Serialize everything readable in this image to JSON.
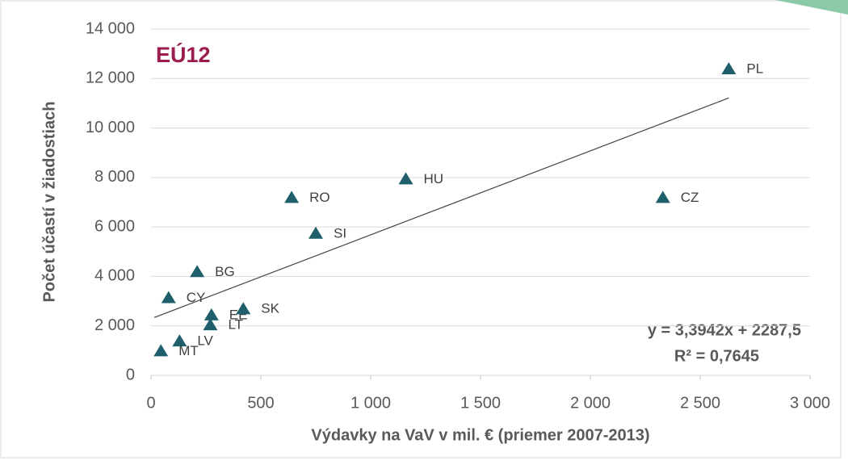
{
  "chart_data": {
    "type": "scatter",
    "inset_label": "EÚ12",
    "xlabel": "Výdavky na VaV v mil. € (priemer 2007-2013)",
    "ylabel": "Počet účastí v žiadostiach",
    "color": "#1f5f6b",
    "grid": true,
    "xlim": [
      0,
      3000
    ],
    "ylim": [
      0,
      14000
    ],
    "xticks": [
      0,
      500,
      {
        "value": 1000,
        "label": "1 000"
      },
      {
        "value": 1500,
        "label": "1 500"
      },
      {
        "value": 2000,
        "label": "2 000"
      },
      {
        "value": 2500,
        "label": "2 500"
      },
      {
        "value": 3000,
        "label": "3 000"
      }
    ],
    "yticks": [
      0,
      {
        "value": 2000,
        "label": "2 000"
      },
      {
        "value": 4000,
        "label": "4 000"
      },
      {
        "value": 6000,
        "label": "6 000"
      },
      {
        "value": 8000,
        "label": "8 000"
      },
      {
        "value": 10000,
        "label": "10 000"
      },
      {
        "value": 12000,
        "label": "12 000"
      },
      {
        "value": 14000,
        "label": "14 000"
      }
    ],
    "labels": [
      "PL",
      "CZ",
      "HU",
      "RO",
      "SI",
      "BG",
      "CY",
      "EE",
      "LT",
      "SK",
      "LV",
      "MT"
    ],
    "x": [
      2630,
      2330,
      1160,
      640,
      750,
      210,
      80,
      275,
      270,
      420,
      130,
      45
    ],
    "y": [
      12400,
      7200,
      7950,
      7200,
      5750,
      4200,
      3150,
      2450,
      2050,
      2700,
      1400,
      1000
    ],
    "trendline": {
      "slope": 3.3942,
      "intercept": 2287.5,
      "x_start": 15,
      "x_end": 2630,
      "equation_label": "y = 3,3942x + 2287,5",
      "r2_label": "R² = 0,7645"
    }
  }
}
